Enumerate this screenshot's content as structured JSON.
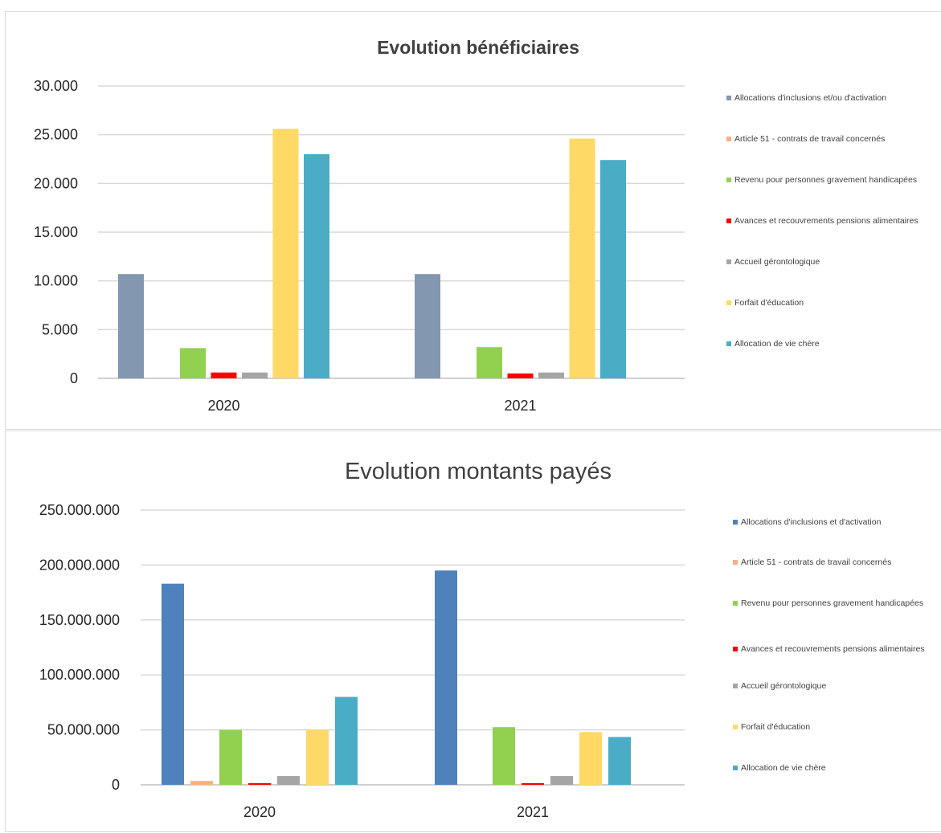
{
  "chart_data": [
    {
      "type": "bar",
      "title": "Evolution bénéficiaires",
      "xlabel": "",
      "ylabel": "",
      "categories": [
        "2020",
        "2021"
      ],
      "ylim": [
        0,
        30000
      ],
      "yticks": [
        0,
        5000,
        10000,
        15000,
        20000,
        25000,
        30000
      ],
      "ytick_labels": [
        "0",
        "5.000",
        "10.000",
        "15.000",
        "20.000",
        "25.000",
        "30.000"
      ],
      "grid": true,
      "legend_position": "right",
      "series": [
        {
          "name": "Allocations d'inclusions et/ou d'activation",
          "color": "#8497B0",
          "values": [
            10700,
            10700
          ]
        },
        {
          "name": "Article 51 - contrats de travail concernés",
          "color": "#F4B183",
          "values": [
            0,
            0
          ]
        },
        {
          "name": "Revenu pour personnes gravement handicapées",
          "color": "#92D050",
          "values": [
            3100,
            3200
          ]
        },
        {
          "name": "Avances et recouvrements pensions alimentaires",
          "color": "#FF0000",
          "values": [
            600,
            500
          ]
        },
        {
          "name": "Accueil gérontologique",
          "color": "#A5A5A5",
          "values": [
            600,
            600
          ]
        },
        {
          "name": "Forfait d'éducation",
          "color": "#FFD966",
          "values": [
            25600,
            24600
          ]
        },
        {
          "name": "Allocation de vie chère",
          "color": "#4BACC6",
          "values": [
            23000,
            22400
          ]
        }
      ]
    },
    {
      "type": "bar",
      "title": "Evolution montants payés",
      "xlabel": "",
      "ylabel": "",
      "categories": [
        "2020",
        "2021"
      ],
      "ylim": [
        0,
        250000000
      ],
      "yticks": [
        0,
        50000000,
        100000000,
        150000000,
        200000000,
        250000000
      ],
      "ytick_labels": [
        "0",
        "50.000.000",
        "100.000.000",
        "150.000.000",
        "200.000.000",
        "250.000.000"
      ],
      "grid": true,
      "legend_position": "right",
      "series": [
        {
          "name": "Allocations d'inclusions et d'activation",
          "color": "#4F81BD",
          "values": [
            183000000,
            195000000
          ]
        },
        {
          "name": "Article 51 - contrats de travail concernés",
          "color": "#F4B183",
          "values": [
            3500000,
            0
          ]
        },
        {
          "name": "Revenu pour personnes gravement handicapées",
          "color": "#92D050",
          "values": [
            50000000,
            52500000
          ]
        },
        {
          "name": "Avances et recouvrements pensions alimentaires",
          "color": "#FF0000",
          "values": [
            1500000,
            1500000
          ]
        },
        {
          "name": "Accueil gérontologique",
          "color": "#A5A5A5",
          "values": [
            8000000,
            8000000
          ]
        },
        {
          "name": "Forfait d'éducation",
          "color": "#FFD966",
          "values": [
            50000000,
            48000000
          ]
        },
        {
          "name": "Allocation de vie chère",
          "color": "#4BACC6",
          "values": [
            80000000,
            43500000
          ]
        }
      ]
    }
  ]
}
